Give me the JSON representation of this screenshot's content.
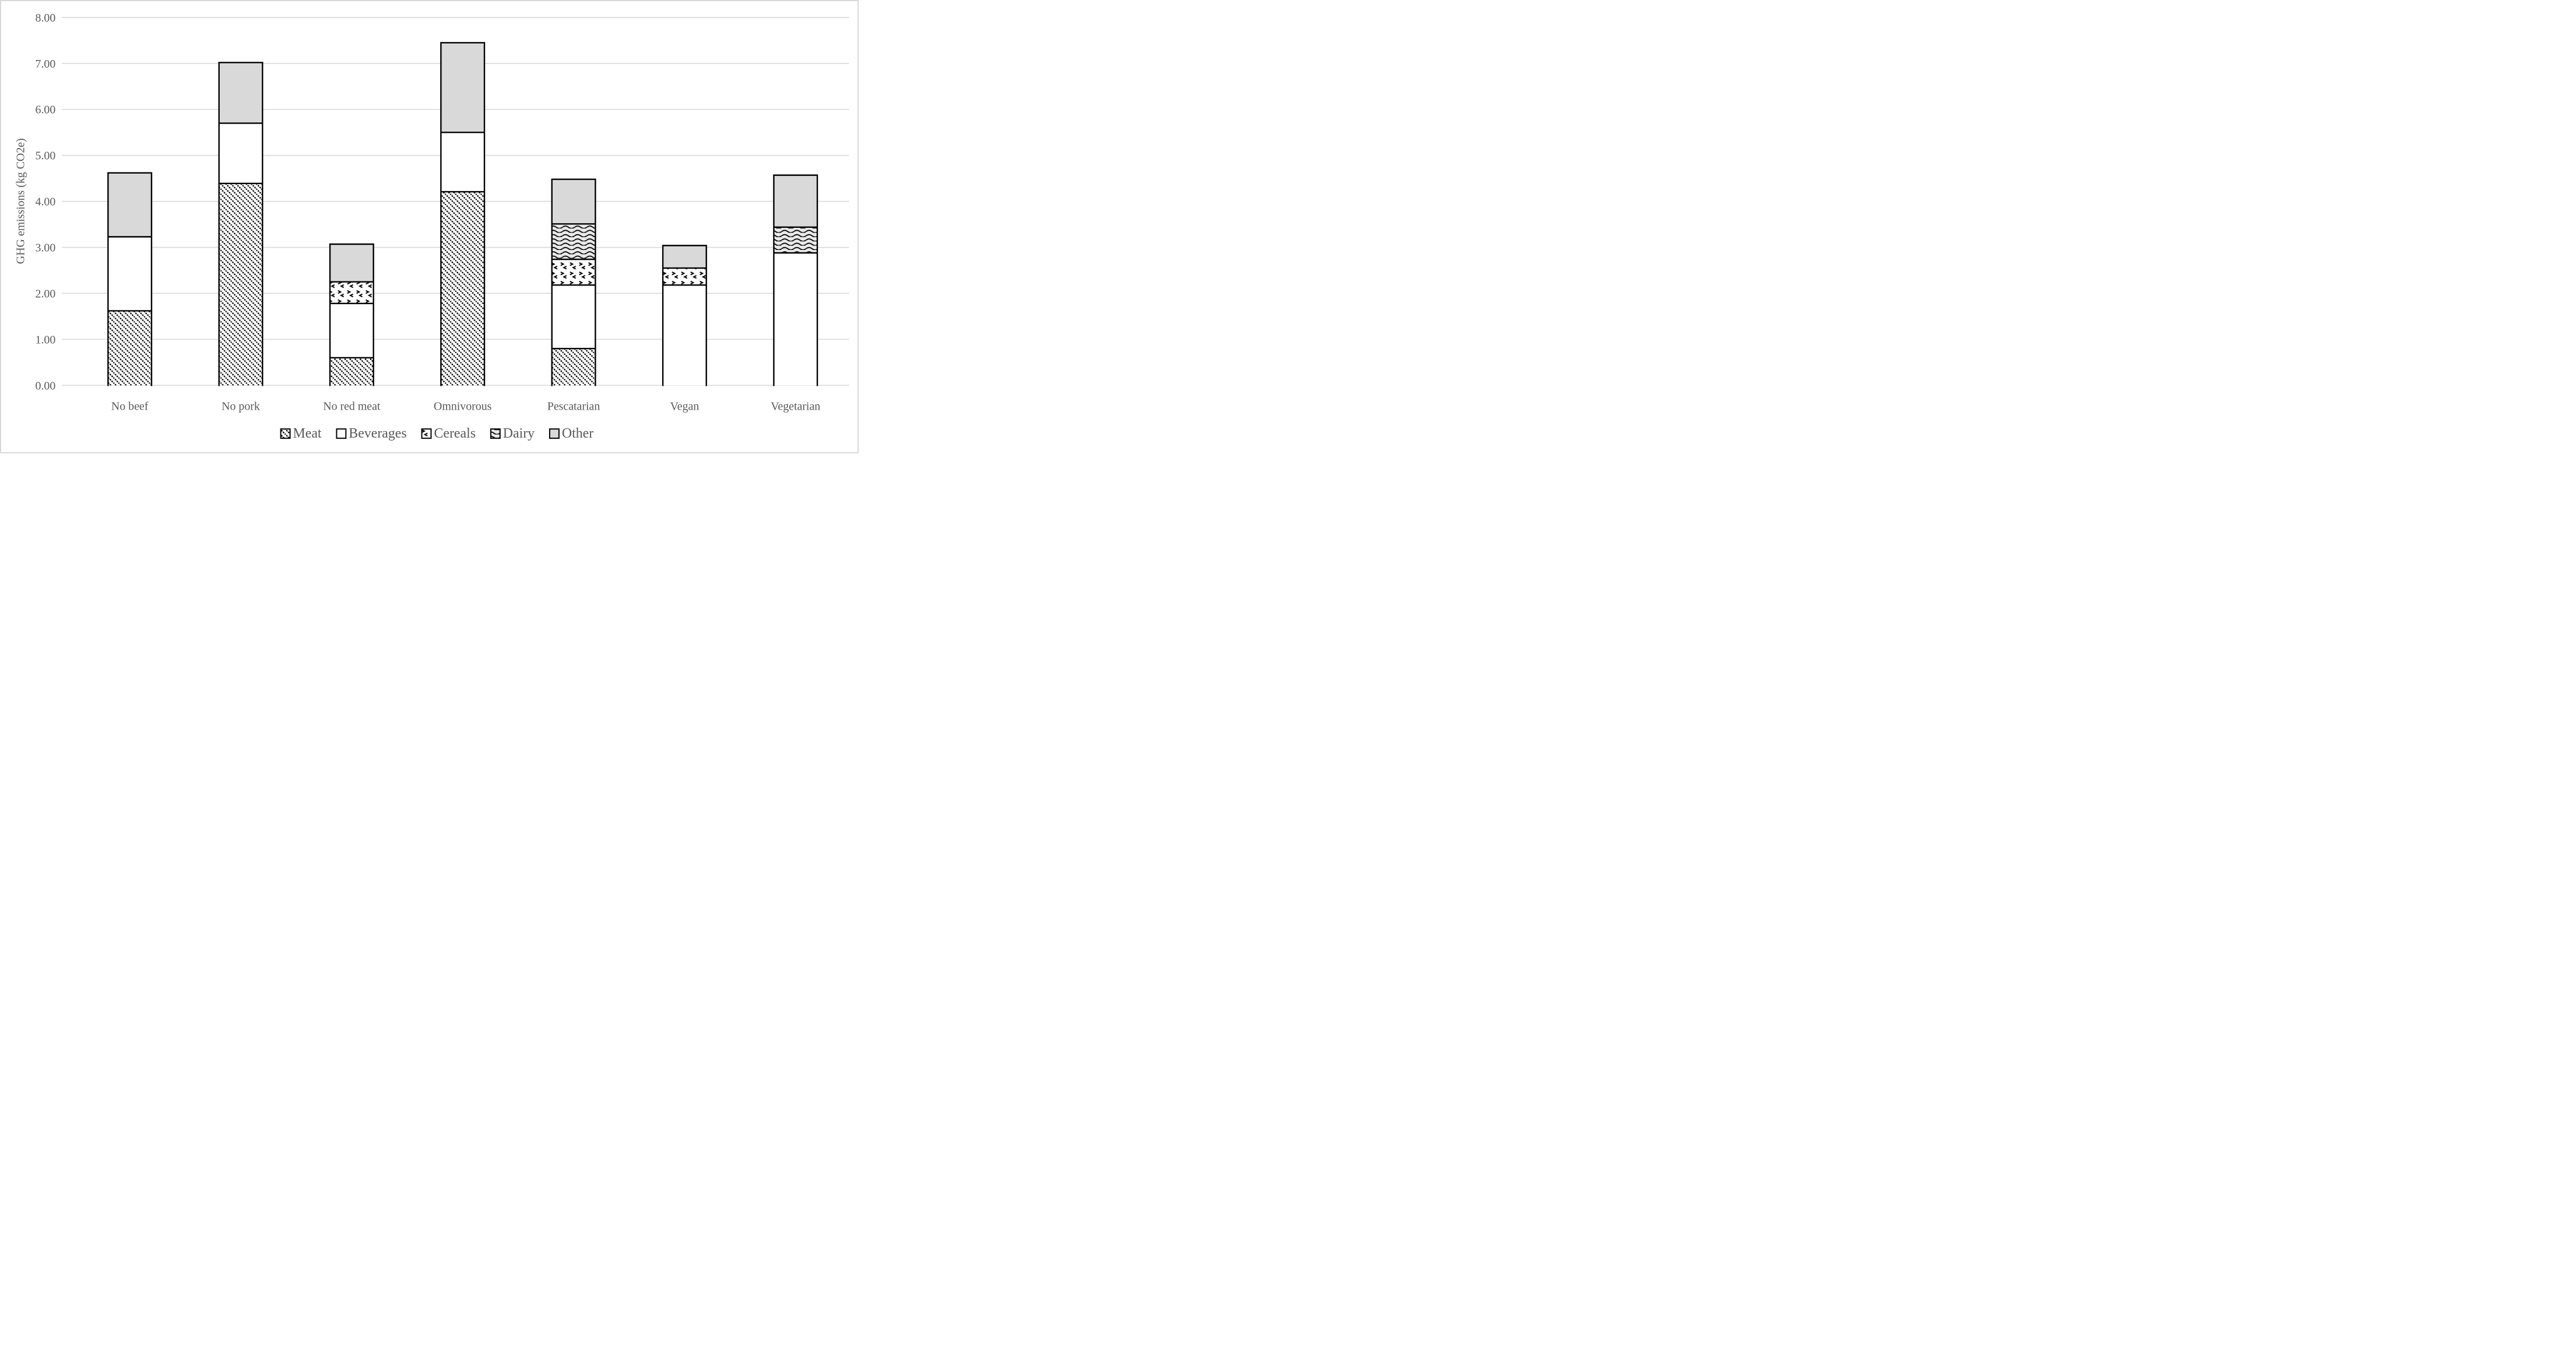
{
  "figure": {
    "background": "#ffffff",
    "frame_color": "#d9d9d9",
    "text_color": "#595959",
    "gridline_color": "#d9d9d9"
  },
  "chart_data": {
    "type": "bar",
    "stacked": true,
    "title": "",
    "xlabel": "",
    "ylabel": "GHG emissions (kg CO2e)",
    "ylim": [
      0,
      8
    ],
    "ytick_step": 1,
    "ytick_labels": [
      "0.00",
      "1.00",
      "2.00",
      "3.00",
      "4.00",
      "5.00",
      "6.00",
      "7.00",
      "8.00"
    ],
    "grid": true,
    "legend_position": "bottom",
    "categories": [
      "No beef",
      "No pork",
      "No red meat",
      "Omnivorous",
      "Pescatarian",
      "Vegan",
      "Vegetarian"
    ],
    "series": [
      {
        "name": "Meat",
        "pattern": "diagonal-hatch",
        "values": [
          1.62,
          4.39,
          0.6,
          4.21,
          0.8,
          0,
          0
        ]
      },
      {
        "name": "Beverages",
        "pattern": "plain",
        "values": [
          1.61,
          1.31,
          1.18,
          1.29,
          1.38,
          2.18,
          2.88
        ]
      },
      {
        "name": "Cereals",
        "pattern": "dotted",
        "values": [
          0,
          0,
          0.47,
          0,
          0.56,
          0.37,
          0
        ]
      },
      {
        "name": "Dairy",
        "pattern": "wave",
        "values": [
          0,
          0,
          0,
          0,
          0.77,
          0,
          0.56
        ]
      },
      {
        "name": "Other",
        "pattern": "solid",
        "values": [
          1.39,
          1.32,
          0.82,
          1.95,
          0.97,
          0.49,
          1.13
        ]
      }
    ],
    "pattern_colors": {
      "stroke": "#000000",
      "hatch_fg": "#000000",
      "plain_bg": "#ffffff",
      "dotted_bg": "#ffffff",
      "dotted_fg": "#000000",
      "wave_bg": "#e9e9e9",
      "wave_fg": "#000000",
      "solid_bg": "#d9d9d9"
    }
  }
}
